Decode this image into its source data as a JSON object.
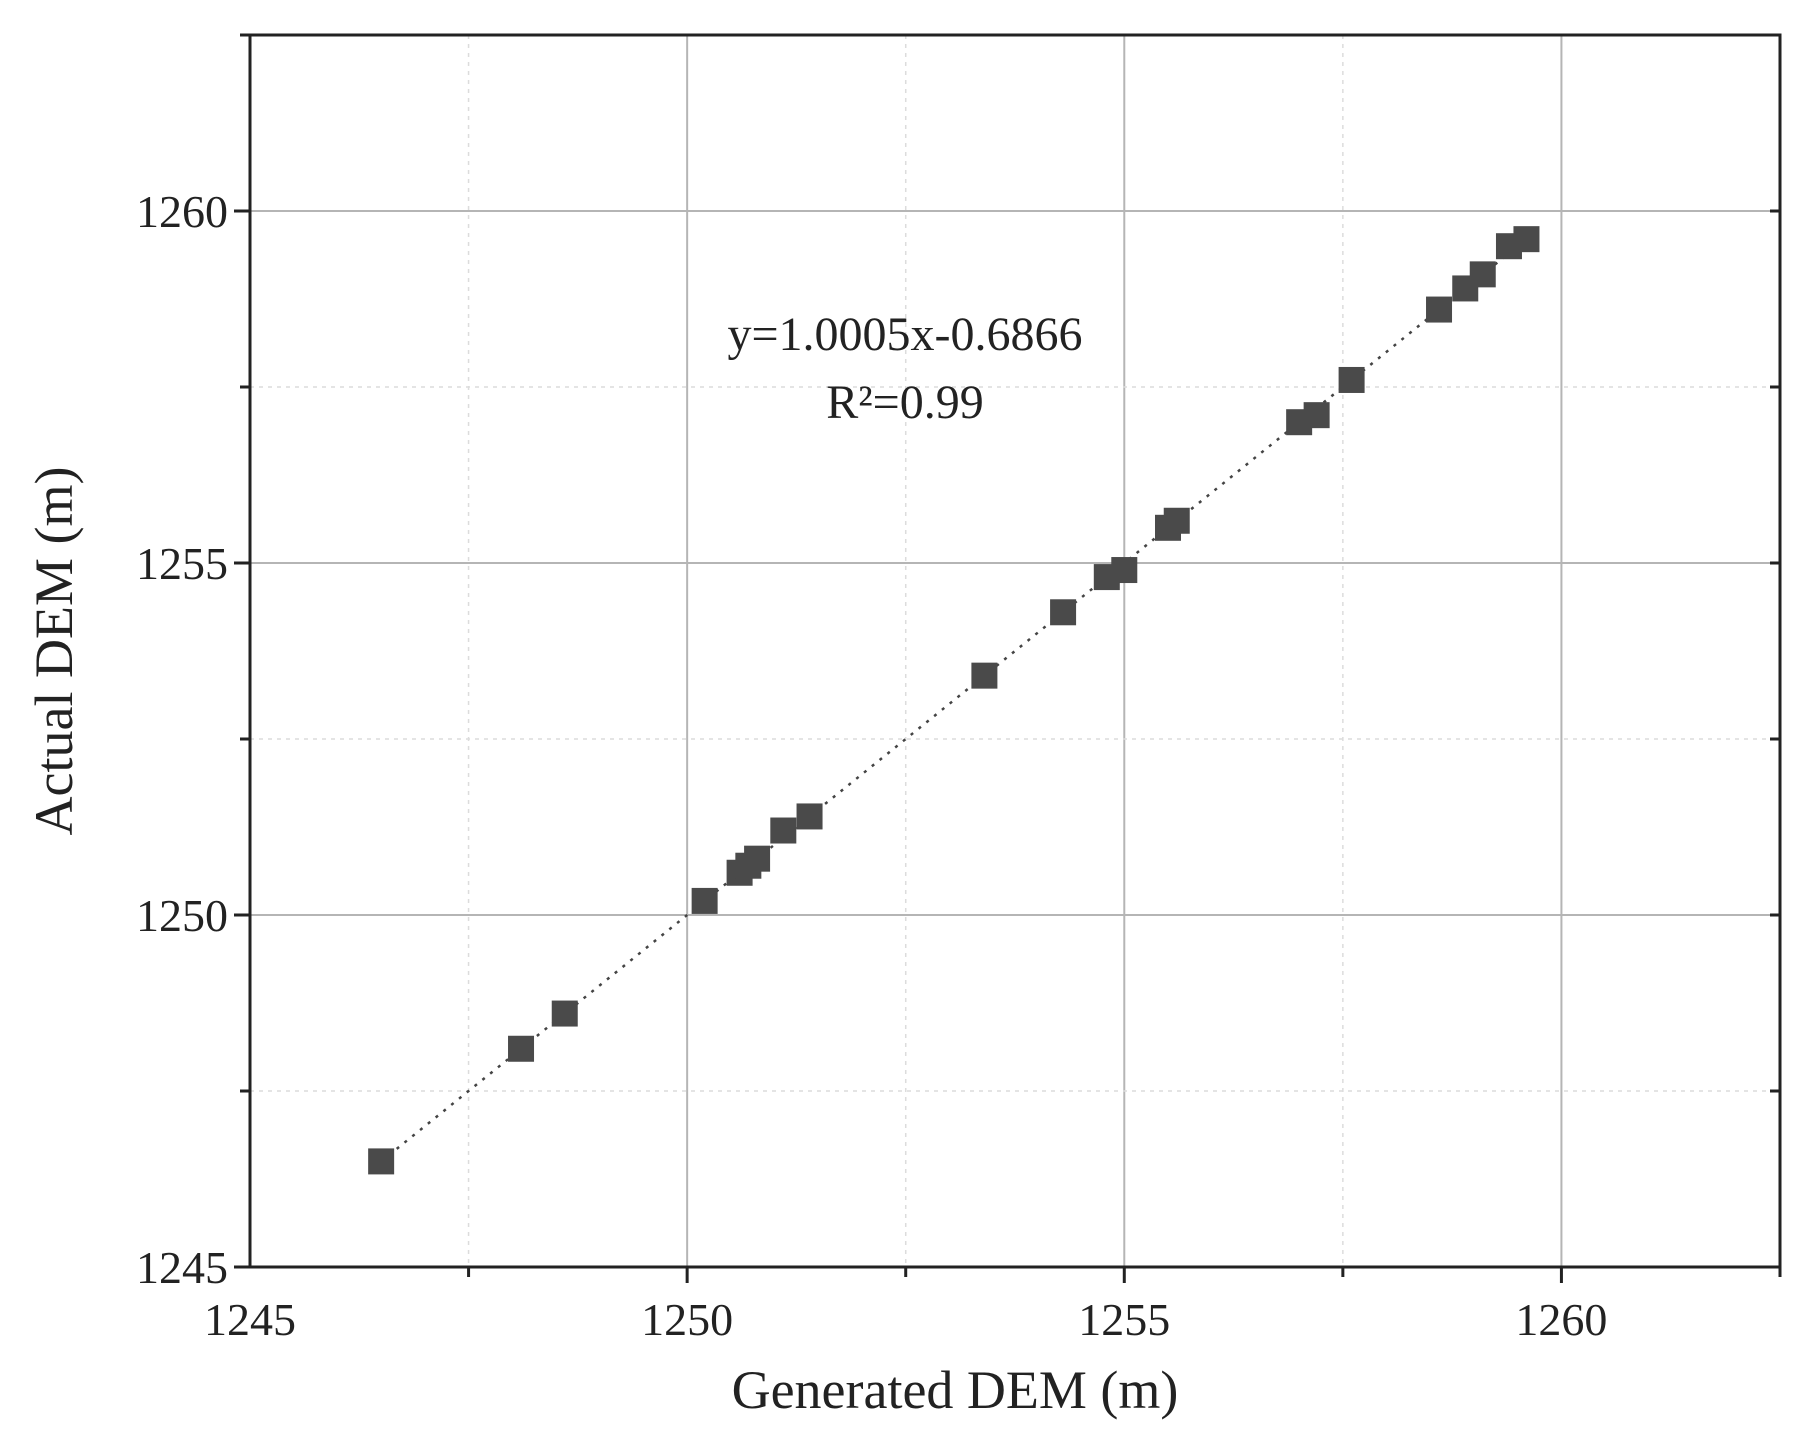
{
  "chart_data": {
    "type": "scatter",
    "xlabel": "Generated DEM (m)",
    "ylabel": "Actual DEM (m)",
    "xlim": [
      1245,
      1262.5
    ],
    "ylim": [
      1245,
      1262.5
    ],
    "x_ticks": [
      1245,
      1250,
      1255,
      1260
    ],
    "y_ticks": [
      1245,
      1250,
      1255,
      1260
    ],
    "x_tick_labels": [
      "1245",
      "1250",
      "1255",
      "1260"
    ],
    "y_tick_labels": [
      "1245",
      "1250",
      "1255",
      "1260"
    ],
    "grid": true,
    "annotation": {
      "equation": "y=1.0005x-0.6866",
      "r_squared": "R²=0.99"
    },
    "fit_line": {
      "slope": 1.0005,
      "intercept": -0.6866,
      "x_range": [
        1246.5,
        1259.6
      ],
      "style": "dotted"
    },
    "marker_color": "#4a4a4a",
    "points": [
      {
        "x": 1246.5,
        "y": 1246.5
      },
      {
        "x": 1248.1,
        "y": 1248.1
      },
      {
        "x": 1248.6,
        "y": 1248.6
      },
      {
        "x": 1250.2,
        "y": 1250.2
      },
      {
        "x": 1250.6,
        "y": 1250.6
      },
      {
        "x": 1250.7,
        "y": 1250.7
      },
      {
        "x": 1250.8,
        "y": 1250.8
      },
      {
        "x": 1251.1,
        "y": 1251.2
      },
      {
        "x": 1251.4,
        "y": 1251.4
      },
      {
        "x": 1253.4,
        "y": 1253.4
      },
      {
        "x": 1254.3,
        "y": 1254.3
      },
      {
        "x": 1254.8,
        "y": 1254.8
      },
      {
        "x": 1255.0,
        "y": 1254.9
      },
      {
        "x": 1255.5,
        "y": 1255.5
      },
      {
        "x": 1255.6,
        "y": 1255.6
      },
      {
        "x": 1257.0,
        "y": 1257.0
      },
      {
        "x": 1257.2,
        "y": 1257.1
      },
      {
        "x": 1257.6,
        "y": 1257.6
      },
      {
        "x": 1258.6,
        "y": 1258.6
      },
      {
        "x": 1258.9,
        "y": 1258.9
      },
      {
        "x": 1259.1,
        "y": 1259.1
      },
      {
        "x": 1259.4,
        "y": 1259.5
      },
      {
        "x": 1259.6,
        "y": 1259.6
      }
    ]
  }
}
